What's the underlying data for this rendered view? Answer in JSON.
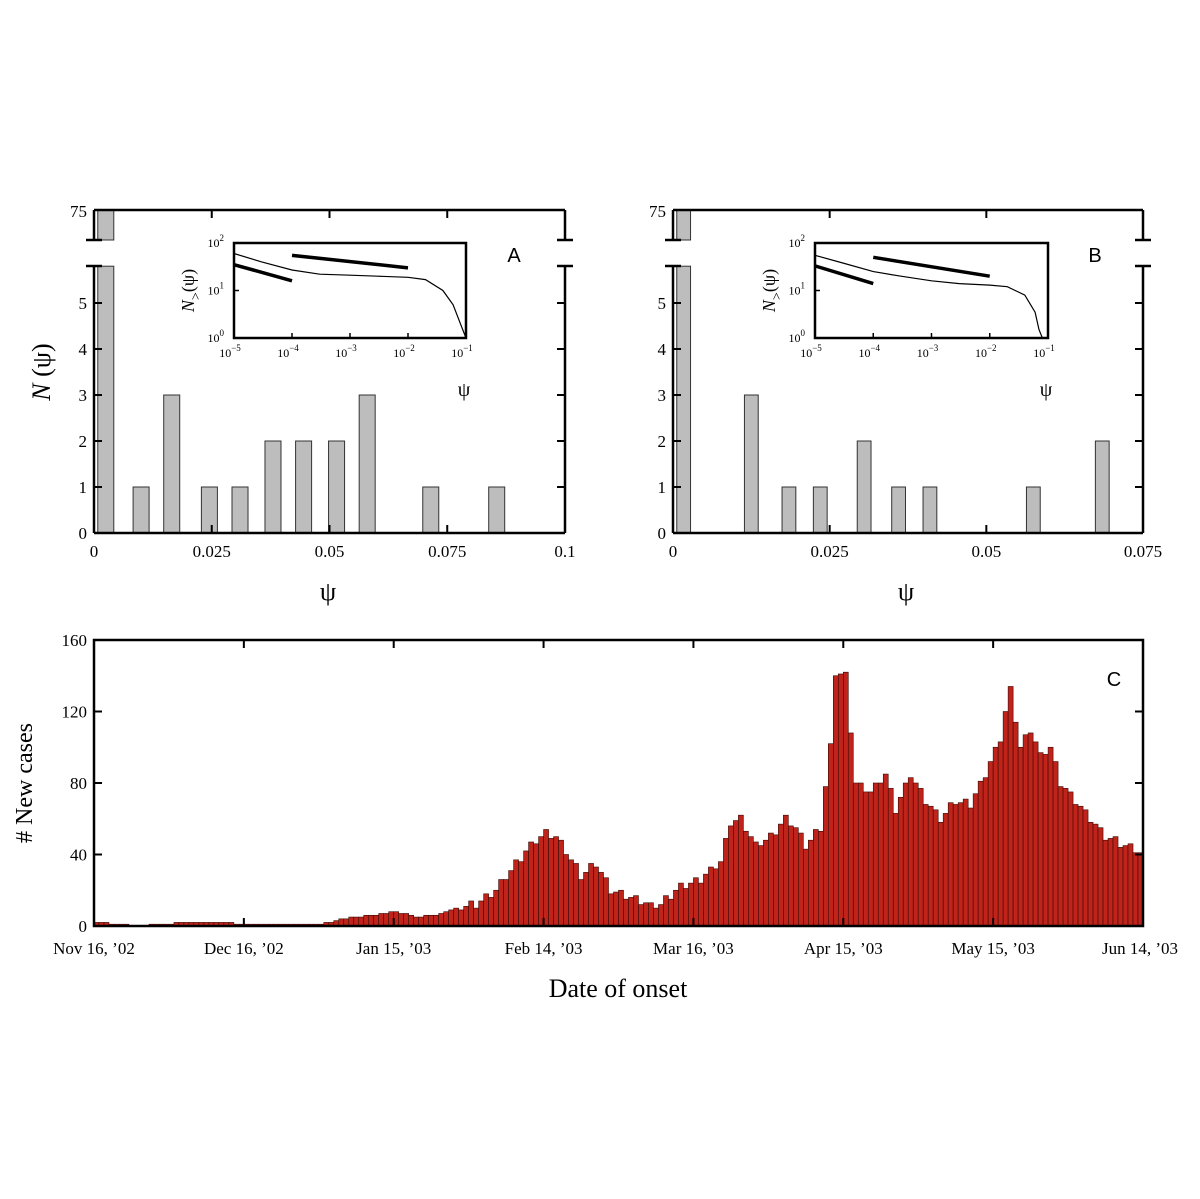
{
  "chart_data": [
    {
      "panel": "A",
      "type": "bar",
      "xlabel": "ψ",
      "ylabel_italic": "N",
      "ylabel_rest": " (ψ)",
      "xlim": [
        0,
        0.1
      ],
      "ylim": [
        0,
        5.8
      ],
      "broken_axis_top_value": 75,
      "x_ticks": [
        "0",
        "0.025",
        "0.05",
        "0.075",
        "0.1"
      ],
      "y_ticks": [
        "0",
        "1",
        "2",
        "3",
        "4",
        "5"
      ],
      "y_break_tick": "75",
      "bin_width": 0.0034,
      "x": [
        0.0025,
        0.01,
        0.0165,
        0.0245,
        0.031,
        0.038,
        0.0445,
        0.0515,
        0.058,
        0.0715,
        0.0855
      ],
      "values": [
        75,
        1,
        3,
        1,
        1,
        2,
        2,
        2,
        3,
        1,
        1
      ],
      "inset": {
        "type": "line",
        "scale": "log-log",
        "xlabel": "ψ",
        "ylabel": "N>(ψ)",
        "x_tick_exponents": [
          "-5",
          "-4",
          "-3",
          "-2",
          "-1"
        ],
        "y_tick_exponents": [
          "0",
          "1",
          "2"
        ],
        "xlim": [
          1e-05,
          0.1
        ],
        "ylim": [
          1,
          100
        ],
        "curve": [
          [
            1e-05,
            60
          ],
          [
            3e-05,
            40
          ],
          [
            0.0001,
            27
          ],
          [
            0.0003,
            22
          ],
          [
            0.001,
            21
          ],
          [
            0.003,
            20
          ],
          [
            0.01,
            19
          ],
          [
            0.02,
            17
          ],
          [
            0.04,
            10
          ],
          [
            0.06,
            5
          ],
          [
            0.08,
            2
          ],
          [
            0.1,
            1
          ]
        ],
        "reference_lines": [
          [
            [
              1e-05,
              35
            ],
            [
              0.0001,
              16
            ]
          ],
          [
            [
              0.0001,
              55
            ],
            [
              0.01,
              30
            ]
          ]
        ]
      }
    },
    {
      "panel": "B",
      "type": "bar",
      "xlabel": "ψ",
      "xlim": [
        0,
        0.075
      ],
      "ylim": [
        0,
        5.8
      ],
      "broken_axis_top_value": 75,
      "x_ticks": [
        "0",
        "0.025",
        "0.05",
        "0.075"
      ],
      "y_ticks": [
        "0",
        "1",
        "2",
        "3",
        "4",
        "5"
      ],
      "y_break_tick": "75",
      "bin_width": 0.0022,
      "x": [
        0.0017,
        0.0125,
        0.0185,
        0.0235,
        0.0305,
        0.036,
        0.041,
        0.0575,
        0.0685
      ],
      "values": [
        75,
        3,
        1,
        1,
        2,
        1,
        1,
        1,
        2
      ],
      "inset": {
        "type": "line",
        "scale": "log-log",
        "xlabel": "ψ",
        "ylabel": "N>(ψ)",
        "x_tick_exponents": [
          "-5",
          "-4",
          "-3",
          "-2",
          "-1"
        ],
        "y_tick_exponents": [
          "0",
          "1",
          "2"
        ],
        "xlim": [
          1e-05,
          0.1
        ],
        "ylim": [
          1,
          100
        ],
        "curve": [
          [
            1e-05,
            55
          ],
          [
            3e-05,
            38
          ],
          [
            0.0001,
            25
          ],
          [
            0.0003,
            20
          ],
          [
            0.001,
            16
          ],
          [
            0.003,
            14
          ],
          [
            0.01,
            13
          ],
          [
            0.02,
            12
          ],
          [
            0.04,
            8
          ],
          [
            0.06,
            3.5
          ],
          [
            0.07,
            1.5
          ],
          [
            0.08,
            1
          ]
        ],
        "reference_lines": [
          [
            [
              1e-05,
              33
            ],
            [
              0.0001,
              14
            ]
          ],
          [
            [
              0.0001,
              50
            ],
            [
              0.01,
              20
            ]
          ]
        ]
      }
    },
    {
      "panel": "C",
      "type": "bar",
      "xlabel": "Date of onset",
      "ylabel": "# New cases",
      "ylim": [
        0,
        160
      ],
      "x_range": [
        "2002-11-16",
        "2003-06-14"
      ],
      "x_ticks": [
        "Nov 16, ’02",
        "Dec 16, ’02",
        "Jan 15, ’03",
        "Feb 14, ’03",
        "Mar 16, ’03",
        "Apr 15, ’03",
        "May 15, ’03",
        "Jun 14, ’03"
      ],
      "y_ticks": [
        "0",
        "40",
        "80",
        "120",
        "160"
      ],
      "color": "#c0231a",
      "series_anchor_days": [
        [
          0,
          2
        ],
        [
          8,
          0
        ],
        [
          14,
          1
        ],
        [
          18,
          2
        ],
        [
          25,
          2
        ],
        [
          30,
          1
        ],
        [
          40,
          1
        ],
        [
          45,
          1
        ],
        [
          48,
          3
        ],
        [
          52,
          5
        ],
        [
          56,
          6
        ],
        [
          60,
          8
        ],
        [
          64,
          5
        ],
        [
          68,
          6
        ],
        [
          72,
          10
        ],
        [
          76,
          12
        ],
        [
          80,
          20
        ],
        [
          84,
          35
        ],
        [
          88,
          48
        ],
        [
          90,
          52
        ],
        [
          92,
          50
        ],
        [
          94,
          42
        ],
        [
          97,
          28
        ],
        [
          100,
          35
        ],
        [
          103,
          20
        ],
        [
          108,
          15
        ],
        [
          112,
          10
        ],
        [
          117,
          22
        ],
        [
          121,
          26
        ],
        [
          125,
          36
        ],
        [
          127,
          58
        ],
        [
          129,
          60
        ],
        [
          132,
          45
        ],
        [
          135,
          50
        ],
        [
          138,
          60
        ],
        [
          140,
          55
        ],
        [
          142,
          45
        ],
        [
          145,
          55
        ],
        [
          147,
          100
        ],
        [
          148,
          142
        ],
        [
          150,
          140
        ],
        [
          152,
          80
        ],
        [
          155,
          75
        ],
        [
          158,
          85
        ],
        [
          160,
          65
        ],
        [
          163,
          85
        ],
        [
          166,
          70
        ],
        [
          169,
          60
        ],
        [
          172,
          70
        ],
        [
          175,
          68
        ],
        [
          178,
          85
        ],
        [
          181,
          105
        ],
        [
          182,
          120
        ],
        [
          183,
          132
        ],
        [
          185,
          100
        ],
        [
          187,
          110
        ],
        [
          189,
          95
        ],
        [
          191,
          100
        ],
        [
          193,
          80
        ],
        [
          196,
          70
        ],
        [
          199,
          60
        ],
        [
          202,
          50
        ],
        [
          206,
          45
        ],
        [
          210,
          40
        ],
        [
          214,
          32
        ],
        [
          218,
          25
        ],
        [
          222,
          20
        ],
        [
          226,
          15
        ],
        [
          230,
          12
        ],
        [
          234,
          8
        ],
        [
          238,
          6
        ],
        [
          241,
          5
        ],
        [
          244,
          2
        ],
        [
          246,
          3
        ],
        [
          248,
          1
        ],
        [
          210,
          40
        ]
      ]
    }
  ]
}
